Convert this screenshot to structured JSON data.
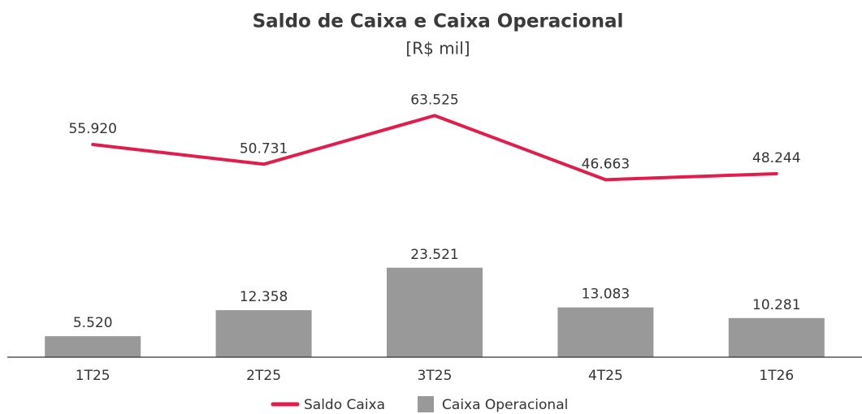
{
  "chart_data": {
    "type": "combo",
    "title": "Saldo de Caixa e Caixa Operacional",
    "subtitle": "[R$ mil]",
    "categories": [
      "1T25",
      "2T25",
      "3T25",
      "4T25",
      "1T26"
    ],
    "ylim": [
      0,
      70000
    ],
    "series": [
      {
        "name": "Saldo Caixa",
        "type": "line",
        "color": "#e21d4c",
        "values": [
          55920,
          50731,
          63525,
          46663,
          48244
        ],
        "value_labels": [
          "55.920",
          "50.731",
          "63.525",
          "46.663",
          "48.244"
        ]
      },
      {
        "name": "Caixa Operacional",
        "type": "bar",
        "color": "#999999",
        "values": [
          5520,
          12358,
          23521,
          13083,
          10281
        ],
        "value_labels": [
          "5.520",
          "12.358",
          "23.521",
          "13.083",
          "10.281"
        ]
      }
    ]
  }
}
